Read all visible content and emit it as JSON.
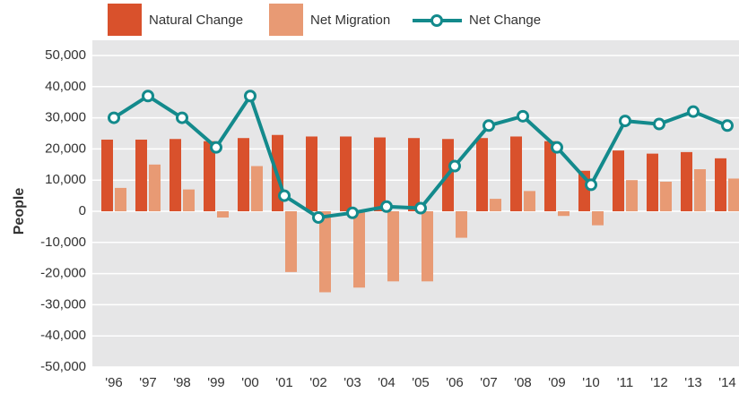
{
  "chart_data": {
    "type": "bar-line",
    "y_label": "People",
    "categories": [
      "'96",
      "'97",
      "'98",
      "'99",
      "'00",
      "'01",
      "'02",
      "'03",
      "'04",
      "'05",
      "'06",
      "'07",
      "'08",
      "'09",
      "'10",
      "'11",
      "'12",
      "'13",
      "'14"
    ],
    "series": [
      {
        "name": "Natural Change",
        "type": "bar",
        "color": "#d9512c",
        "values": [
          23000,
          23000,
          23200,
          22500,
          23500,
          24500,
          24000,
          24000,
          23700,
          23500,
          23200,
          23500,
          24000,
          22500,
          13000,
          19500,
          18500,
          19000,
          17000
        ]
      },
      {
        "name": "Net Migration",
        "type": "bar",
        "color": "#e89a74",
        "values": [
          7500,
          15000,
          7000,
          -2000,
          14500,
          -19500,
          -26000,
          -24500,
          -22500,
          -22500,
          -8500,
          4000,
          6500,
          -1500,
          -4500,
          10000,
          9500,
          13500,
          10500
        ]
      },
      {
        "name": "Net Change",
        "type": "line",
        "color": "#138a8c",
        "values": [
          30000,
          37000,
          30000,
          20500,
          37000,
          5000,
          -2000,
          -500,
          1500,
          1000,
          14500,
          27500,
          30500,
          20500,
          8500,
          29000,
          28000,
          32000,
          27500
        ]
      }
    ],
    "ylim": [
      -50000,
      50000
    ],
    "yticks": [
      {
        "value": -50000,
        "label": "-50,000"
      },
      {
        "value": -40000,
        "label": "-40,000"
      },
      {
        "value": -30000,
        "label": "-30,000"
      },
      {
        "value": -20000,
        "label": "-20,000"
      },
      {
        "value": -10000,
        "label": "-10,000"
      },
      0,
      {
        "value": 10000,
        "label": "10,000"
      },
      {
        "value": 20000,
        "label": "20,000"
      },
      {
        "value": 30000,
        "label": "30,000"
      },
      {
        "value": 40000,
        "label": "40,000"
      },
      {
        "value": 50000,
        "label": "50,000"
      }
    ],
    "grid": true
  }
}
